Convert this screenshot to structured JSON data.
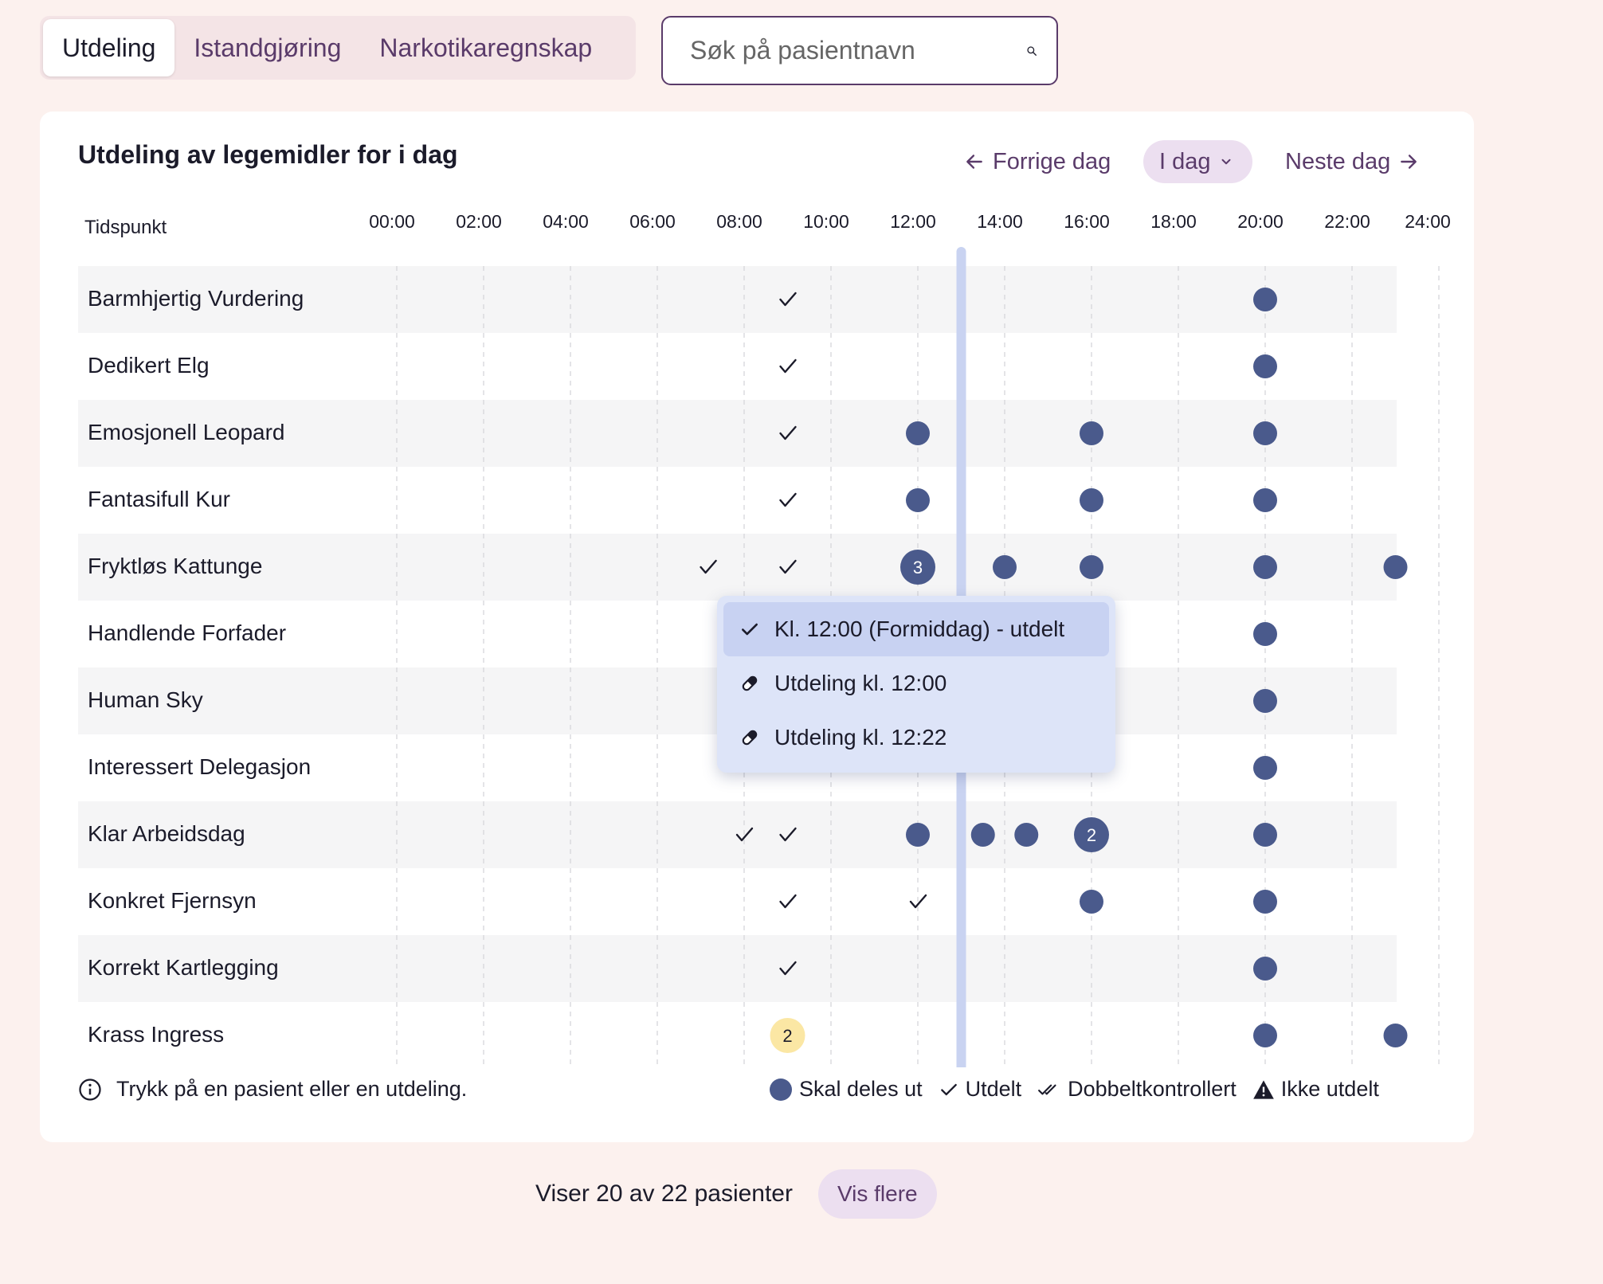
{
  "tabs": [
    {
      "label": "Utdeling",
      "active": true
    },
    {
      "label": "Istandgjøring",
      "active": false
    },
    {
      "label": "Narkotikaregnskap",
      "active": false
    }
  ],
  "search": {
    "placeholder": "Søk på pasientnavn",
    "icon": "search-icon"
  },
  "card": {
    "title": "Utdeling av legemidler for i dag",
    "nav": {
      "prev": "Forrige dag",
      "today": "I dag",
      "next": "Neste dag"
    },
    "time_label": "Tidspunkt",
    "time_ticks": [
      "00:00",
      "02:00",
      "04:00",
      "06:00",
      "08:00",
      "10:00",
      "12:00",
      "14:00",
      "16:00",
      "18:00",
      "20:00",
      "22:00",
      "24:00"
    ],
    "current_time": "13:00",
    "patients": [
      {
        "name": "Barmhjertig Vurdering",
        "events": [
          {
            "t": "09:00",
            "s": "done"
          },
          {
            "t": "20:00",
            "s": "due"
          }
        ]
      },
      {
        "name": "Dedikert Elg",
        "events": [
          {
            "t": "09:00",
            "s": "done"
          },
          {
            "t": "20:00",
            "s": "due"
          }
        ]
      },
      {
        "name": "Emosjonell Leopard",
        "events": [
          {
            "t": "09:00",
            "s": "done"
          },
          {
            "t": "12:00",
            "s": "due"
          },
          {
            "t": "16:00",
            "s": "due"
          },
          {
            "t": "20:00",
            "s": "due"
          }
        ]
      },
      {
        "name": "Fantasifull Kur",
        "events": [
          {
            "t": "09:00",
            "s": "done"
          },
          {
            "t": "12:00",
            "s": "due"
          },
          {
            "t": "16:00",
            "s": "due"
          },
          {
            "t": "20:00",
            "s": "due"
          }
        ]
      },
      {
        "name": "Fryktløs Kattunge",
        "events": [
          {
            "t": "07:10",
            "s": "done"
          },
          {
            "t": "09:00",
            "s": "done"
          },
          {
            "t": "12:00",
            "s": "due",
            "count": 3
          },
          {
            "t": "14:00",
            "s": "due"
          },
          {
            "t": "16:00",
            "s": "due"
          },
          {
            "t": "20:00",
            "s": "due"
          },
          {
            "t": "23:00",
            "s": "due"
          }
        ]
      },
      {
        "name": "Handlende Forfader",
        "events": [
          {
            "t": "20:00",
            "s": "due"
          }
        ]
      },
      {
        "name": "Human Sky",
        "events": [
          {
            "t": "20:00",
            "s": "due"
          }
        ]
      },
      {
        "name": "Interessert Delegasjon",
        "events": [
          {
            "t": "20:00",
            "s": "due"
          }
        ]
      },
      {
        "name": "Klar Arbeidsdag",
        "events": [
          {
            "t": "08:00",
            "s": "done"
          },
          {
            "t": "09:00",
            "s": "done"
          },
          {
            "t": "12:00",
            "s": "due"
          },
          {
            "t": "13:30",
            "s": "due"
          },
          {
            "t": "14:30",
            "s": "due"
          },
          {
            "t": "16:00",
            "s": "due",
            "count": 2
          },
          {
            "t": "20:00",
            "s": "due"
          }
        ]
      },
      {
        "name": "Konkret Fjernsyn",
        "events": [
          {
            "t": "09:00",
            "s": "done"
          },
          {
            "t": "12:00",
            "s": "done"
          },
          {
            "t": "16:00",
            "s": "due"
          },
          {
            "t": "20:00",
            "s": "due"
          }
        ]
      },
      {
        "name": "Korrekt Kartlegging",
        "events": [
          {
            "t": "09:00",
            "s": "done"
          },
          {
            "t": "20:00",
            "s": "due"
          }
        ]
      },
      {
        "name": "Krass Ingress",
        "events": [
          {
            "t": "09:00",
            "s": "pending",
            "count": 2
          },
          {
            "t": "20:00",
            "s": "due"
          },
          {
            "t": "23:00",
            "s": "due"
          }
        ]
      }
    ]
  },
  "popup": {
    "items": [
      {
        "label": "Kl. 12:00 (Formiddag) - utdelt",
        "icon": "check-icon",
        "selected": true
      },
      {
        "label": "Utdeling kl. 12:00",
        "icon": "pill-icon",
        "selected": false
      },
      {
        "label": "Utdeling kl. 12:22",
        "icon": "pill-icon",
        "selected": false
      }
    ]
  },
  "hint": "Trykk på en pasient eller en utdeling.",
  "legend": [
    {
      "label": "Skal deles ut",
      "icon": "due-dot-icon"
    },
    {
      "label": "Utdelt",
      "icon": "check-icon"
    },
    {
      "label": "Dobbeltkontrollert",
      "icon": "double-check-icon"
    },
    {
      "label": "Ikke utdelt",
      "icon": "warning-icon"
    }
  ],
  "footer": {
    "text": "Viser 20 av 22 pasienter",
    "button": "Vis flere"
  },
  "colors": {
    "due": "#4a5a8c",
    "pending": "#fbe7a4",
    "current_time": "#c9d3f1",
    "accent": "#5a3b6a",
    "background": "#fcf1ee"
  }
}
